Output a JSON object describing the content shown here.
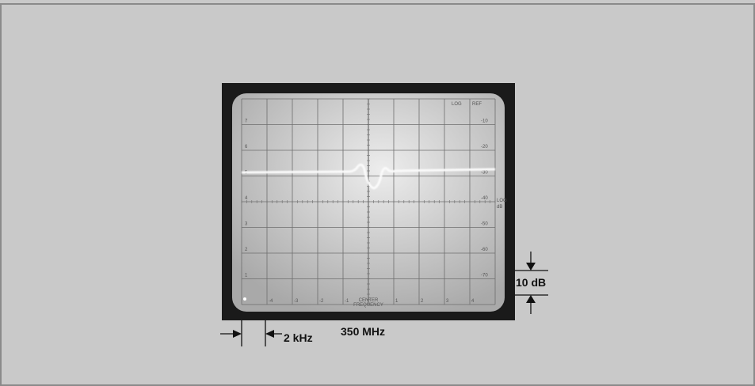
{
  "screen": {
    "top_labels": [
      "LOG",
      "REF"
    ],
    "left_labels": [
      "7",
      "6",
      "5",
      "4",
      "3",
      "2",
      "1"
    ],
    "right_labels": [
      "-10",
      "-20",
      "-30",
      "-40",
      "-50",
      "-60",
      "-70"
    ],
    "side_label": [
      "LOG",
      "dB"
    ],
    "bottom_labels": [
      "-4",
      "-3",
      "-2",
      "-1",
      "1",
      "2",
      "3",
      "4"
    ],
    "center_label": [
      "CENTER",
      "FREQUENCY"
    ]
  },
  "annotations": {
    "frequency": "350 MHz",
    "span": "2 kHz",
    "scale": "10 dB"
  }
}
